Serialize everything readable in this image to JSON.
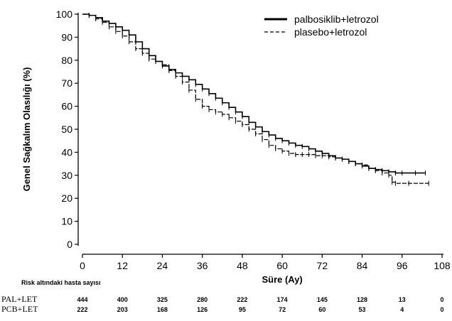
{
  "chart_data": {
    "type": "line",
    "title": "",
    "xlabel": "Süre (Ay)",
    "ylabel": "Genel Sağkalım Olasılığı (%)",
    "xlim": [
      0,
      108
    ],
    "ylim": [
      0,
      100
    ],
    "x_ticks": [
      0,
      12,
      24,
      36,
      48,
      60,
      72,
      84,
      96,
      108
    ],
    "y_ticks": [
      0,
      10,
      20,
      30,
      40,
      50,
      60,
      70,
      80,
      90,
      100
    ],
    "legend_position": "top-right",
    "series": [
      {
        "name": "palbosiklib+letrozol",
        "style": "solid",
        "points": [
          [
            0,
            100
          ],
          [
            2,
            99.5
          ],
          [
            4,
            98.5
          ],
          [
            6,
            97
          ],
          [
            8,
            96
          ],
          [
            10,
            94.5
          ],
          [
            12,
            93
          ],
          [
            14,
            91
          ],
          [
            16,
            88
          ],
          [
            18,
            85
          ],
          [
            20,
            82
          ],
          [
            22,
            79.5
          ],
          [
            24,
            77.5
          ],
          [
            26,
            76
          ],
          [
            28,
            74.5
          ],
          [
            30,
            73
          ],
          [
            32,
            71.5
          ],
          [
            34,
            69.5
          ],
          [
            36,
            67.5
          ],
          [
            38,
            65.5
          ],
          [
            40,
            63.5
          ],
          [
            42,
            61.5
          ],
          [
            44,
            59.5
          ],
          [
            46,
            57.5
          ],
          [
            48,
            55.5
          ],
          [
            50,
            53
          ],
          [
            52,
            51
          ],
          [
            54,
            49
          ],
          [
            56,
            47.5
          ],
          [
            58,
            46
          ],
          [
            60,
            45
          ],
          [
            62,
            44
          ],
          [
            64,
            43
          ],
          [
            66,
            42.5
          ],
          [
            68,
            41.5
          ],
          [
            70,
            40.5
          ],
          [
            72,
            39.5
          ],
          [
            74,
            38.5
          ],
          [
            76,
            37.5
          ],
          [
            78,
            37
          ],
          [
            80,
            36
          ],
          [
            82,
            35
          ],
          [
            84,
            34
          ],
          [
            86,
            33
          ],
          [
            88,
            32.5
          ],
          [
            90,
            32
          ],
          [
            92,
            31.5
          ],
          [
            94,
            31
          ],
          [
            96,
            31
          ],
          [
            100,
            31
          ],
          [
            103,
            31
          ]
        ]
      },
      {
        "name": "plasebo+letrozol",
        "style": "dashed",
        "points": [
          [
            0,
            100
          ],
          [
            2,
            99.5
          ],
          [
            4,
            98
          ],
          [
            6,
            96.5
          ],
          [
            8,
            94.5
          ],
          [
            10,
            92.5
          ],
          [
            12,
            90.5
          ],
          [
            14,
            88
          ],
          [
            16,
            85
          ],
          [
            18,
            83
          ],
          [
            20,
            80.5
          ],
          [
            22,
            79.5
          ],
          [
            24,
            78
          ],
          [
            26,
            75.5
          ],
          [
            28,
            73
          ],
          [
            30,
            70.5
          ],
          [
            32,
            67
          ],
          [
            34,
            63
          ],
          [
            36,
            60
          ],
          [
            38,
            58.5
          ],
          [
            40,
            57.5
          ],
          [
            42,
            56.5
          ],
          [
            44,
            55
          ],
          [
            46,
            53.5
          ],
          [
            48,
            52
          ],
          [
            50,
            50
          ],
          [
            52,
            48
          ],
          [
            54,
            45.5
          ],
          [
            56,
            43
          ],
          [
            58,
            41.5
          ],
          [
            60,
            40.5
          ],
          [
            62,
            39.5
          ],
          [
            64,
            39
          ],
          [
            66,
            39
          ],
          [
            68,
            39
          ],
          [
            70,
            38.5
          ],
          [
            72,
            38.5
          ],
          [
            74,
            38
          ],
          [
            76,
            37.5
          ],
          [
            78,
            37
          ],
          [
            80,
            36
          ],
          [
            82,
            35
          ],
          [
            84,
            34.5
          ],
          [
            86,
            33
          ],
          [
            88,
            32
          ],
          [
            90,
            31
          ],
          [
            92,
            30
          ],
          [
            93,
            27
          ],
          [
            94,
            26.5
          ],
          [
            98,
            26.5
          ],
          [
            104,
            26.5
          ]
        ]
      }
    ],
    "risk_table": {
      "title": "Risk altındaki hasta sayısı",
      "rows": [
        {
          "label": "PAL+LET",
          "values": [
            "444",
            "400",
            "325",
            "280",
            "222",
            "174",
            "145",
            "128",
            "13",
            "0"
          ]
        },
        {
          "label": "PCB+LET",
          "values": [
            "222",
            "203",
            "168",
            "126",
            "95",
            "72",
            "60",
            "53",
            "4",
            "0"
          ]
        }
      ]
    }
  }
}
